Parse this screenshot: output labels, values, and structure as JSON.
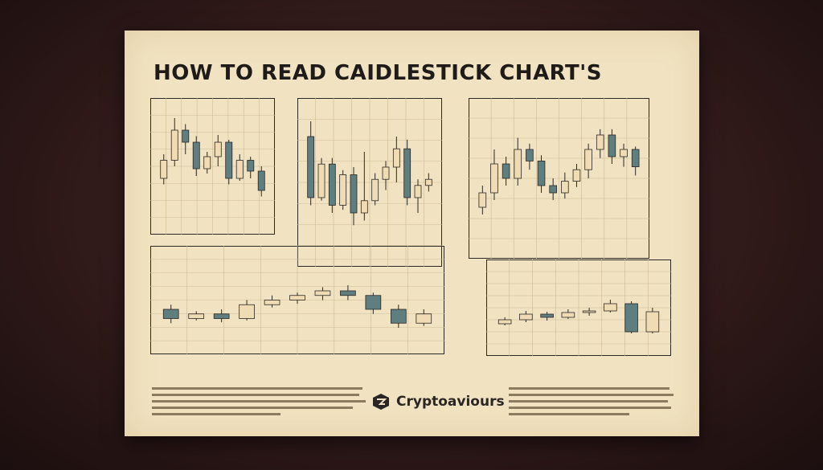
{
  "poster": {
    "title": "HOW TO READ CAIDLESTICK CHART'S",
    "brand": "Cryptoaviours",
    "brand_icon": "crypto-logo-icon"
  },
  "colors": {
    "poster_bg": "#f1e3c1",
    "bear_candle": "#5e7e80",
    "bull_candle": "#efdcb4",
    "ink": "#2a2623",
    "grid": "#cdbb93"
  },
  "chart_data": [
    {
      "type": "candlestick",
      "panel": "top-left",
      "candles": [
        [
          40,
          55,
          35,
          60
        ],
        [
          55,
          80,
          50,
          90
        ],
        [
          80,
          70,
          60,
          85
        ],
        [
          70,
          48,
          42,
          75
        ],
        [
          48,
          58,
          44,
          62
        ],
        [
          58,
          70,
          50,
          76
        ],
        [
          70,
          40,
          35,
          72
        ],
        [
          40,
          55,
          38,
          60
        ],
        [
          55,
          46,
          40,
          58
        ],
        [
          46,
          30,
          25,
          50
        ]
      ]
    },
    {
      "type": "candlestick",
      "panel": "top-center",
      "candles": [
        [
          80,
          40,
          35,
          90
        ],
        [
          40,
          62,
          38,
          66
        ],
        [
          62,
          35,
          30,
          66
        ],
        [
          35,
          55,
          32,
          58
        ],
        [
          55,
          30,
          22,
          60
        ],
        [
          30,
          38,
          25,
          70
        ],
        [
          38,
          52,
          35,
          56
        ],
        [
          52,
          60,
          45,
          64
        ],
        [
          60,
          72,
          50,
          80
        ],
        [
          72,
          40,
          35,
          78
        ],
        [
          40,
          48,
          30,
          52
        ],
        [
          48,
          52,
          44,
          56
        ]
      ]
    },
    {
      "type": "candlestick",
      "panel": "top-right",
      "candles": [
        [
          30,
          40,
          25,
          45
        ],
        [
          40,
          60,
          35,
          70
        ],
        [
          60,
          50,
          45,
          65
        ],
        [
          50,
          70,
          45,
          78
        ],
        [
          70,
          62,
          56,
          74
        ],
        [
          62,
          45,
          40,
          66
        ],
        [
          45,
          40,
          35,
          50
        ],
        [
          40,
          48,
          36,
          54
        ],
        [
          48,
          56,
          44,
          60
        ],
        [
          56,
          70,
          50,
          74
        ],
        [
          70,
          80,
          64,
          84
        ],
        [
          80,
          65,
          60,
          84
        ],
        [
          65,
          70,
          58,
          74
        ],
        [
          70,
          58,
          52,
          72
        ]
      ]
    },
    {
      "type": "candlestick",
      "panel": "middle-left",
      "candles": [
        [
          40,
          30,
          25,
          45
        ],
        [
          30,
          35,
          28,
          38
        ],
        [
          35,
          30,
          26,
          40
        ],
        [
          30,
          45,
          28,
          50
        ],
        [
          45,
          50,
          42,
          55
        ],
        [
          50,
          55,
          46,
          58
        ],
        [
          55,
          60,
          50,
          64
        ],
        [
          60,
          55,
          50,
          66
        ],
        [
          55,
          40,
          35,
          58
        ],
        [
          40,
          25,
          20,
          45
        ],
        [
          25,
          35,
          22,
          40
        ]
      ]
    },
    {
      "type": "candlestick",
      "panel": "middle-right",
      "candles": [
        [
          30,
          35,
          28,
          38
        ],
        [
          35,
          42,
          32,
          46
        ],
        [
          42,
          38,
          34,
          45
        ],
        [
          38,
          44,
          36,
          48
        ],
        [
          44,
          46,
          40,
          50
        ],
        [
          46,
          55,
          44,
          60
        ],
        [
          55,
          20,
          18,
          58
        ],
        [
          20,
          45,
          18,
          50
        ]
      ]
    }
  ]
}
